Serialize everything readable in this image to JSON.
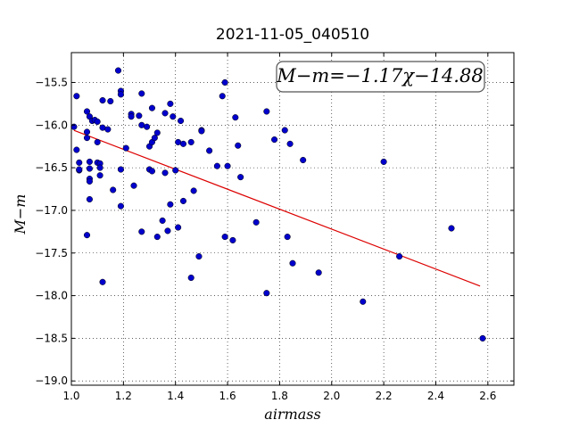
{
  "chart_data": {
    "type": "scatter",
    "title": "2021-11-05_040510",
    "xlabel": "airmass",
    "ylabel": "M−m",
    "xlim": [
      1.0,
      2.7
    ],
    "ylim": [
      -19.05,
      -15.15
    ],
    "xticks": [
      1.0,
      1.2,
      1.4,
      1.6,
      1.8,
      2.0,
      2.2,
      2.4,
      2.6
    ],
    "xtick_labels": [
      "1.0",
      "1.2",
      "1.4",
      "1.6",
      "1.8",
      "2.0",
      "2.2",
      "2.4",
      "2.6"
    ],
    "yticks": [
      -15.5,
      -16.0,
      -16.5,
      -17.0,
      -17.5,
      -18.0,
      -18.5,
      -19.0
    ],
    "ytick_labels": [
      "−15.5",
      "−16.0",
      "−16.5",
      "−17.0",
      "−17.5",
      "−18.0",
      "−18.5",
      "−19.0"
    ],
    "grid": true,
    "annotation": "M−m=−1.17χ−14.88",
    "colors": {
      "points": "#0000cc",
      "fit": "#dd0000"
    },
    "fit": {
      "slope": -1.17,
      "intercept": -14.88,
      "x_range": [
        1.01,
        2.57
      ]
    },
    "points": [
      [
        1.01,
        -16.02
      ],
      [
        1.02,
        -15.66
      ],
      [
        1.02,
        -16.29
      ],
      [
        1.03,
        -16.44
      ],
      [
        1.03,
        -16.53
      ],
      [
        1.03,
        -16.52
      ],
      [
        1.06,
        -15.84
      ],
      [
        1.06,
        -16.15
      ],
      [
        1.06,
        -16.08
      ],
      [
        1.06,
        -17.29
      ],
      [
        1.07,
        -15.9
      ],
      [
        1.07,
        -16.43
      ],
      [
        1.07,
        -16.51
      ],
      [
        1.07,
        -16.63
      ],
      [
        1.07,
        -16.66
      ],
      [
        1.07,
        -16.87
      ],
      [
        1.08,
        -15.95
      ],
      [
        1.09,
        -15.94
      ],
      [
        1.1,
        -15.96
      ],
      [
        1.1,
        -16.2
      ],
      [
        1.1,
        -16.44
      ],
      [
        1.11,
        -16.45
      ],
      [
        1.11,
        -16.5
      ],
      [
        1.11,
        -16.59
      ],
      [
        1.12,
        -15.71
      ],
      [
        1.12,
        -16.03
      ],
      [
        1.12,
        -17.84
      ],
      [
        1.14,
        -16.05
      ],
      [
        1.15,
        -15.72
      ],
      [
        1.16,
        -16.76
      ],
      [
        1.18,
        -15.36
      ],
      [
        1.19,
        -15.6
      ],
      [
        1.19,
        -15.64
      ],
      [
        1.19,
        -16.52
      ],
      [
        1.19,
        -16.95
      ],
      [
        1.21,
        -16.27
      ],
      [
        1.23,
        -15.87
      ],
      [
        1.23,
        -15.9
      ],
      [
        1.24,
        -16.71
      ],
      [
        1.26,
        -15.89
      ],
      [
        1.27,
        -15.63
      ],
      [
        1.27,
        -16.0
      ],
      [
        1.27,
        -17.25
      ],
      [
        1.29,
        -16.02
      ],
      [
        1.3,
        -16.25
      ],
      [
        1.3,
        -16.52
      ],
      [
        1.31,
        -15.8
      ],
      [
        1.31,
        -16.2
      ],
      [
        1.31,
        -16.54
      ],
      [
        1.32,
        -16.15
      ],
      [
        1.33,
        -16.09
      ],
      [
        1.33,
        -17.31
      ],
      [
        1.35,
        -17.12
      ],
      [
        1.36,
        -15.86
      ],
      [
        1.36,
        -16.56
      ],
      [
        1.37,
        -17.24
      ],
      [
        1.38,
        -15.75
      ],
      [
        1.38,
        -16.93
      ],
      [
        1.39,
        -15.9
      ],
      [
        1.4,
        -16.53
      ],
      [
        1.41,
        -16.2
      ],
      [
        1.41,
        -17.2
      ],
      [
        1.42,
        -15.95
      ],
      [
        1.43,
        -16.22
      ],
      [
        1.43,
        -16.89
      ],
      [
        1.46,
        -16.2
      ],
      [
        1.46,
        -17.79
      ],
      [
        1.47,
        -16.77
      ],
      [
        1.49,
        -17.54
      ],
      [
        1.5,
        -16.06
      ],
      [
        1.5,
        -16.07
      ],
      [
        1.53,
        -16.3
      ],
      [
        1.56,
        -16.48
      ],
      [
        1.58,
        -15.66
      ],
      [
        1.59,
        -15.5
      ],
      [
        1.59,
        -17.31
      ],
      [
        1.6,
        -16.48
      ],
      [
        1.62,
        -17.35
      ],
      [
        1.63,
        -15.91
      ],
      [
        1.64,
        -16.24
      ],
      [
        1.65,
        -16.61
      ],
      [
        1.71,
        -17.14
      ],
      [
        1.75,
        -15.84
      ],
      [
        1.75,
        -17.97
      ],
      [
        1.78,
        -16.17
      ],
      [
        1.82,
        -16.06
      ],
      [
        1.83,
        -17.31
      ],
      [
        1.84,
        -16.22
      ],
      [
        1.85,
        -17.62
      ],
      [
        1.89,
        -16.41
      ],
      [
        1.95,
        -17.73
      ],
      [
        2.12,
        -18.07
      ],
      [
        2.2,
        -16.43
      ],
      [
        2.26,
        -17.54
      ],
      [
        2.46,
        -17.21
      ],
      [
        2.58,
        -18.5
      ]
    ]
  }
}
